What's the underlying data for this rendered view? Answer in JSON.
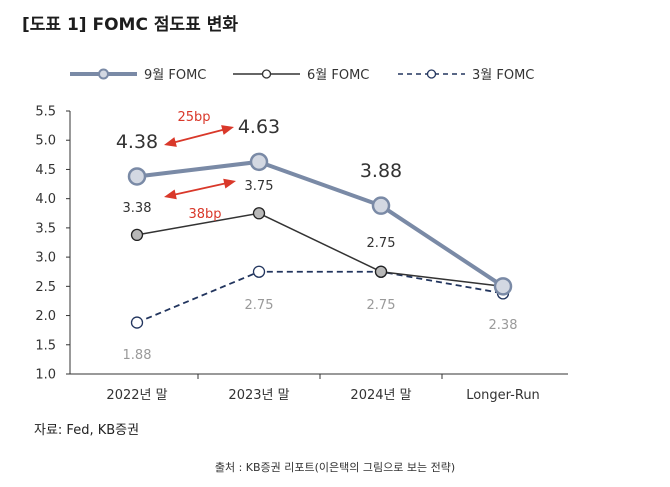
{
  "title": "[도표 1] FOMC 점도표 변화",
  "source": "자료: Fed, KB증권",
  "credit": "출처 : KB증권 리포트(이은택의 그림으로 보는 전략)",
  "colors": {
    "sep": "#7a8aa6",
    "sep_marker_fill": "#d3d8e2",
    "jun": "#333333",
    "jun_marker_fill": "#b8b8b8",
    "mar": "#22355e",
    "mar_label": "#9a9a9a",
    "arrow": "#d9382a",
    "axis": "#333333"
  },
  "chart_data": {
    "type": "line",
    "categories": [
      "2022년 말",
      "2023년 말",
      "2024년 말",
      "Longer-Run"
    ],
    "ylim": [
      1.0,
      5.5
    ],
    "yticks": [
      "1.0",
      "1.5",
      "2.0",
      "2.5",
      "3.0",
      "3.5",
      "4.0",
      "4.5",
      "5.0",
      "5.5"
    ],
    "grid": false,
    "legend_position": "top",
    "series": [
      {
        "key": "sep",
        "name": "9월 FOMC",
        "style": "solid-thick",
        "values": [
          4.38,
          4.63,
          3.88,
          2.5
        ],
        "labels": [
          "4.38",
          "4.63",
          "3.88",
          ""
        ]
      },
      {
        "key": "jun",
        "name": "6월 FOMC",
        "style": "solid",
        "values": [
          3.38,
          3.75,
          2.75,
          2.5
        ],
        "labels": [
          "3.38",
          "3.75",
          "2.75",
          ""
        ]
      },
      {
        "key": "mar",
        "name": "3월 FOMC",
        "style": "dashed",
        "values": [
          1.88,
          2.75,
          2.75,
          2.38
        ],
        "labels": [
          "1.88",
          "2.75",
          "2.75",
          "2.38"
        ]
      }
    ],
    "annotations": [
      {
        "text": "25bp"
      },
      {
        "text": "38bp"
      }
    ]
  }
}
